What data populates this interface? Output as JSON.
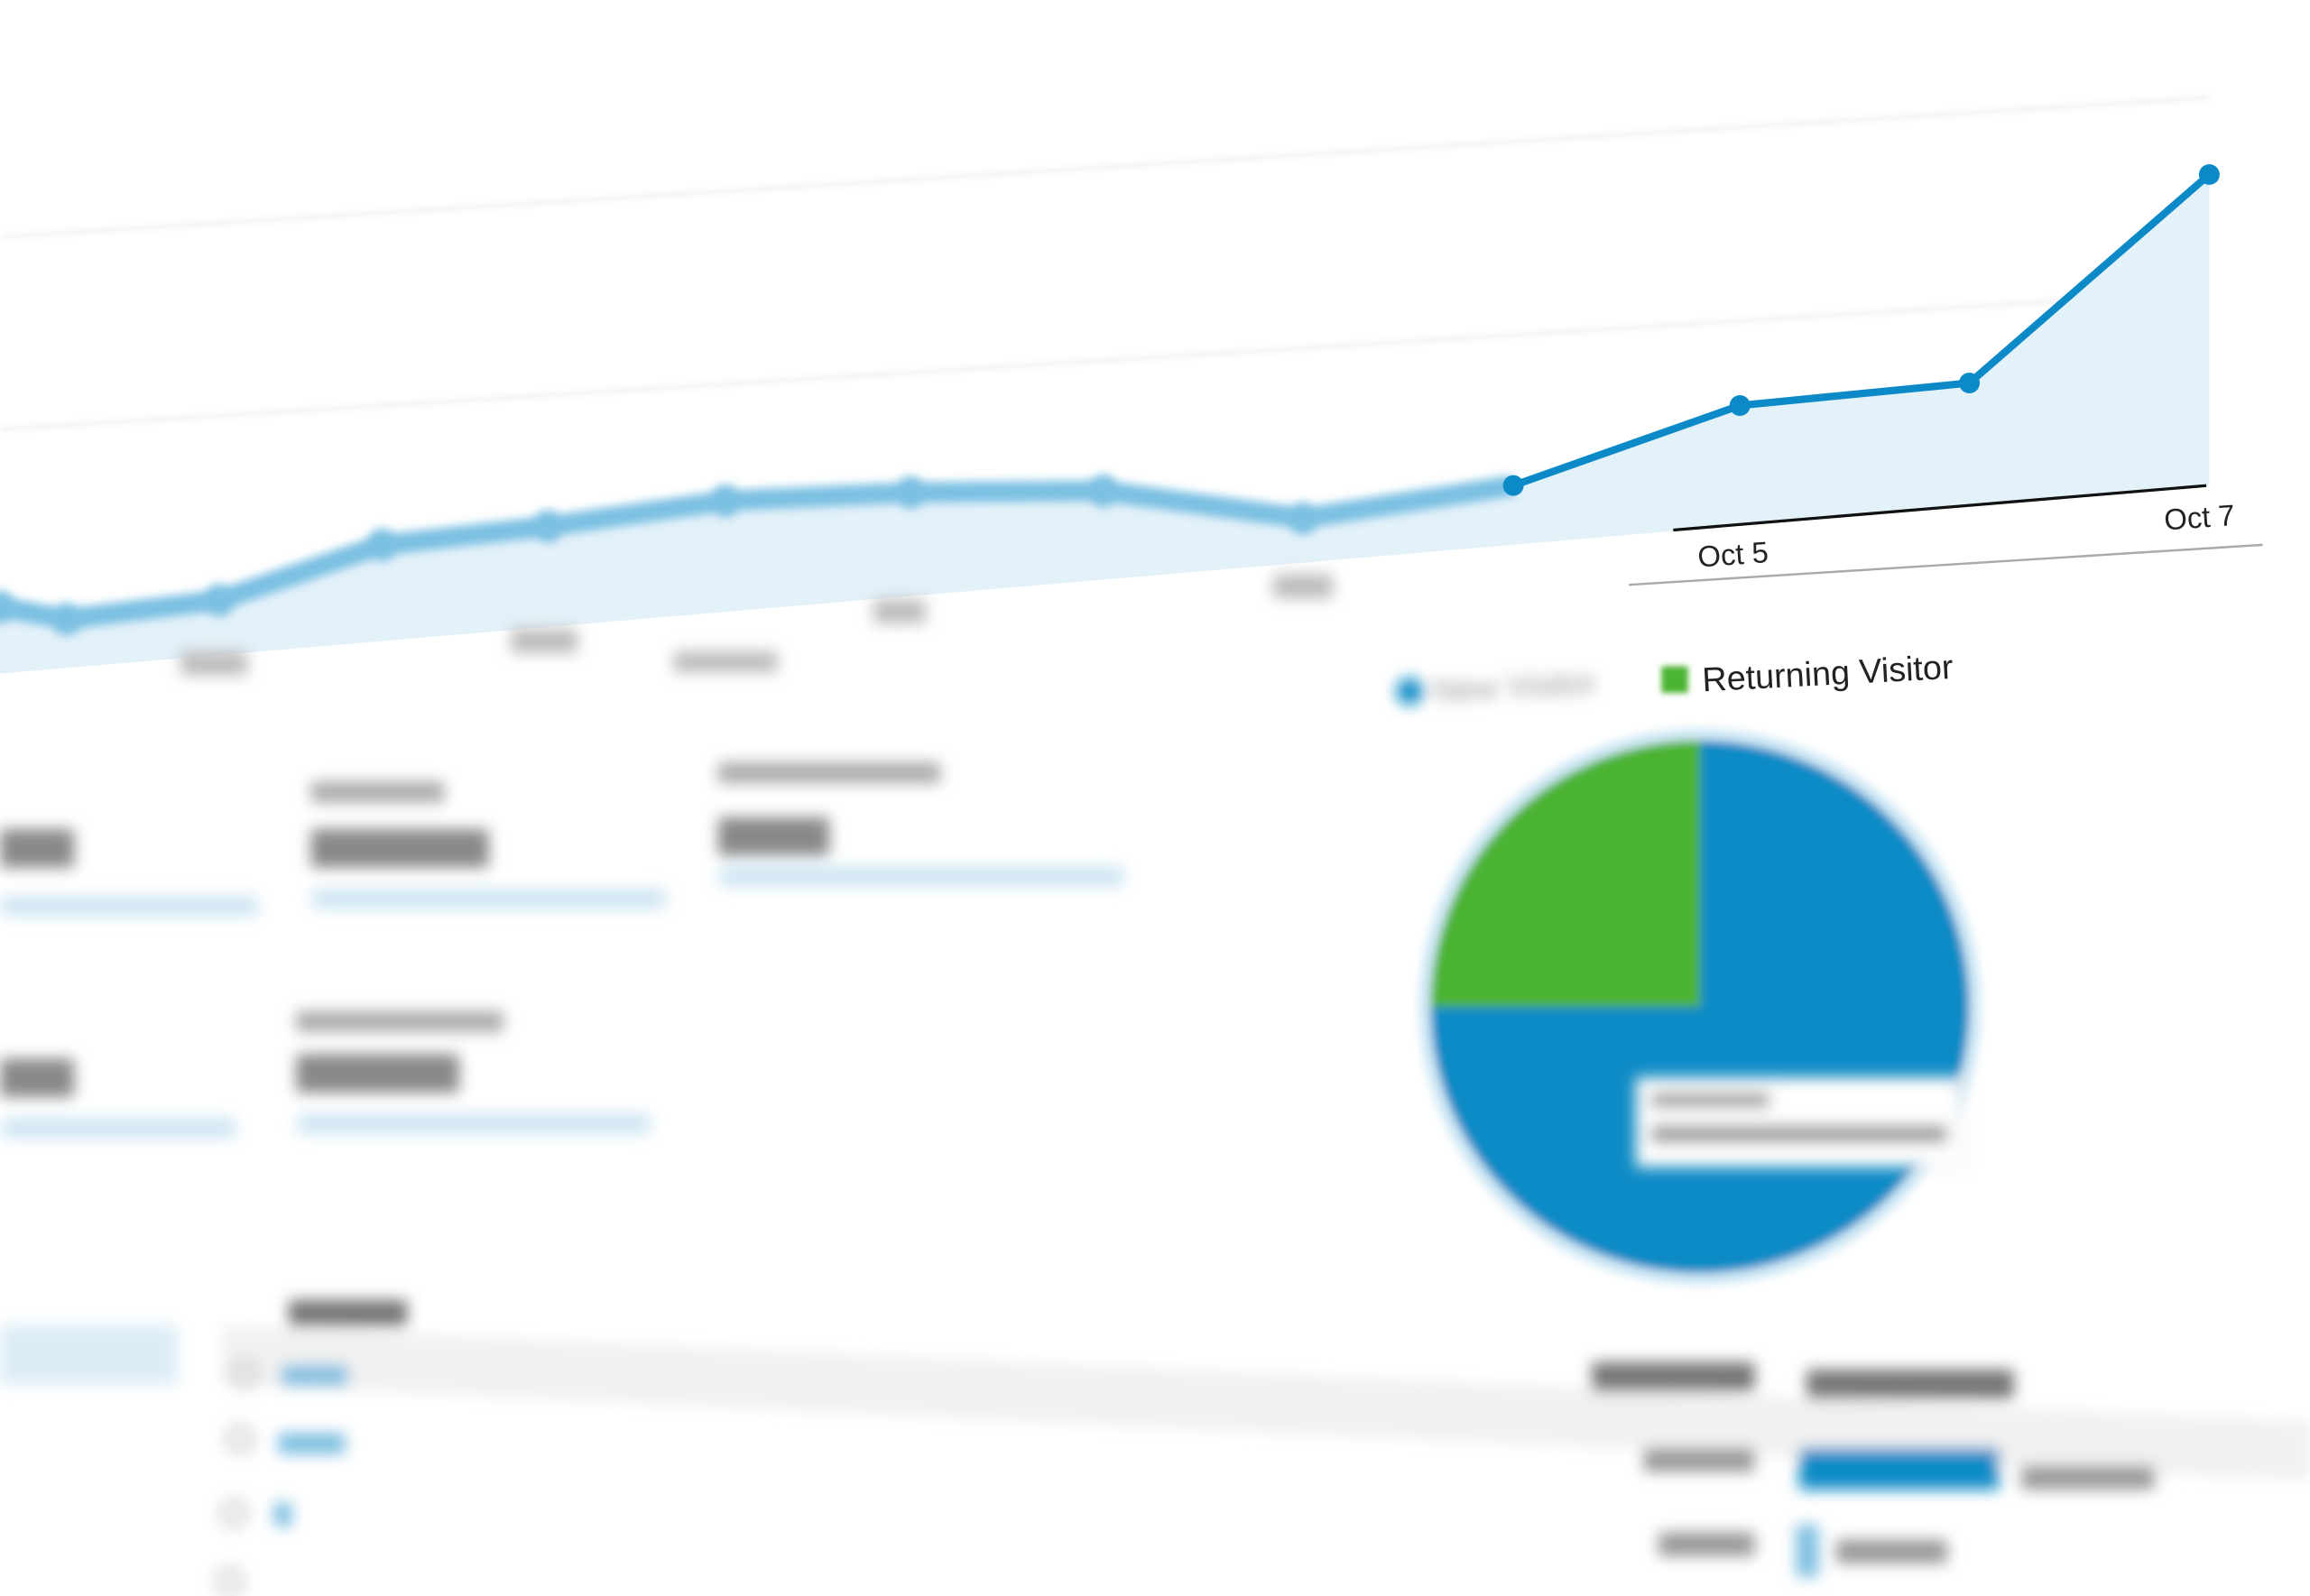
{
  "chart_data": [
    {
      "type": "area",
      "x_tick_labels": [
        "Oct 5",
        "Oct 7"
      ],
      "series": [
        {
          "values": [
            45,
            33,
            37,
            65,
            68,
            75,
            70,
            60,
            30,
            40,
            81,
            83,
            210
          ],
          "color": "#0c8ac8",
          "fill": "#e3f1f9"
        }
      ],
      "grid": true
    },
    {
      "type": "pie",
      "legend": [
        {
          "label": "New Visitor",
          "color": "#0a8bc6"
        },
        {
          "label": "Returning Visitor",
          "color": "#4cb332"
        }
      ],
      "values": [
        75,
        25
      ],
      "legend_placement": "top"
    }
  ],
  "colors": {
    "primary": "#0a8bc6",
    "secondary": "#4cb332",
    "area": "#e3f1f9"
  }
}
